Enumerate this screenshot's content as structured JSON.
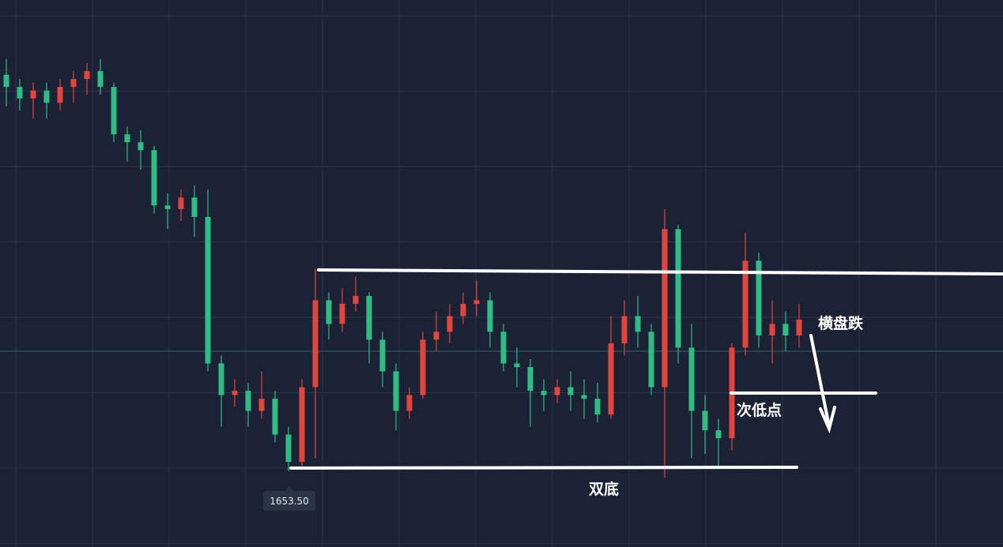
{
  "chart_data": {
    "type": "candlestick",
    "up_color": "#e2453c",
    "down_color": "#2ebd85",
    "ylim": [
      1641,
      1731
    ],
    "open": [
      1718.7,
      1716.7,
      1714.8,
      1716.1,
      1714.1,
      1716.7,
      1718.0,
      1719.3,
      1716.7,
      1708.9,
      1707.6,
      1706.3,
      1697.2,
      1696.6,
      1698.5,
      1695.3,
      1671.2,
      1666.0,
      1666.7,
      1663.4,
      1665.4,
      1659.5,
      1655.0,
      1667.3,
      1681.6,
      1677.7,
      1681.0,
      1682.3,
      1675.1,
      1669.9,
      1663.4,
      1666.0,
      1675.1,
      1676.4,
      1679.0,
      1681.0,
      1681.6,
      1676.4,
      1671.2,
      1670.6,
      1666.7,
      1666.0,
      1667.3,
      1666.0,
      1665.4,
      1662.8,
      1674.5,
      1679.0,
      1676.4,
      1667.3,
      1693.3,
      1673.8,
      1663.4,
      1660.2,
      1658.9,
      1673.8,
      1688.1,
      1675.8,
      1677.7,
      1675.8
    ],
    "high": [
      1721.3,
      1718.0,
      1717.4,
      1717.4,
      1718.0,
      1719.3,
      1720.6,
      1721.3,
      1717.4,
      1710.2,
      1709.6,
      1707.0,
      1699.2,
      1699.8,
      1700.5,
      1699.8,
      1672.5,
      1668.6,
      1668.0,
      1669.9,
      1666.7,
      1660.8,
      1668.6,
      1686.8,
      1682.9,
      1683.6,
      1685.5,
      1682.9,
      1676.4,
      1671.2,
      1667.3,
      1676.4,
      1679.7,
      1681.0,
      1682.9,
      1684.9,
      1682.9,
      1677.7,
      1673.8,
      1671.9,
      1668.6,
      1668.6,
      1669.9,
      1668.6,
      1668.0,
      1679.0,
      1681.6,
      1682.3,
      1677.7,
      1696.6,
      1694.0,
      1677.7,
      1666.0,
      1662.1,
      1674.5,
      1692.7,
      1689.4,
      1681.6,
      1679.7,
      1681.0
    ],
    "low": [
      1713.5,
      1712.8,
      1711.5,
      1711.5,
      1712.8,
      1714.1,
      1715.4,
      1715.4,
      1707.6,
      1704.4,
      1703.1,
      1695.9,
      1693.3,
      1694.6,
      1692.0,
      1669.9,
      1660.8,
      1664.1,
      1660.8,
      1662.1,
      1658.2,
      1653.5,
      1654.3,
      1655.6,
      1675.1,
      1676.4,
      1679.7,
      1671.2,
      1667.3,
      1660.2,
      1662.1,
      1665.4,
      1673.2,
      1674.5,
      1677.7,
      1679.0,
      1673.8,
      1669.9,
      1667.3,
      1660.8,
      1663.4,
      1664.7,
      1663.4,
      1662.1,
      1661.5,
      1662.1,
      1672.5,
      1673.8,
      1666.0,
      1652.4,
      1671.2,
      1655.6,
      1656.3,
      1654.3,
      1656.9,
      1672.5,
      1673.8,
      1671.2,
      1673.2,
      1673.8
    ],
    "close": [
      1716.7,
      1714.8,
      1716.1,
      1714.1,
      1716.7,
      1718.0,
      1719.3,
      1716.7,
      1708.9,
      1707.6,
      1706.3,
      1697.2,
      1696.6,
      1698.5,
      1695.3,
      1671.2,
      1666.0,
      1666.7,
      1663.4,
      1665.4,
      1659.5,
      1655.0,
      1667.3,
      1681.6,
      1677.7,
      1681.0,
      1682.3,
      1675.1,
      1669.9,
      1663.4,
      1666.0,
      1675.1,
      1676.4,
      1679.0,
      1681.0,
      1681.6,
      1676.4,
      1671.2,
      1670.6,
      1666.7,
      1666.0,
      1667.3,
      1666.0,
      1665.4,
      1662.8,
      1674.5,
      1679.0,
      1676.4,
      1667.3,
      1693.3,
      1673.8,
      1663.4,
      1660.2,
      1658.9,
      1673.8,
      1688.1,
      1675.8,
      1677.7,
      1675.8,
      1678.4
    ],
    "low_label": {
      "value": 1653.5,
      "label": "1653.50"
    },
    "annotations": [
      "横盘跌",
      "次低点",
      "双底"
    ]
  }
}
